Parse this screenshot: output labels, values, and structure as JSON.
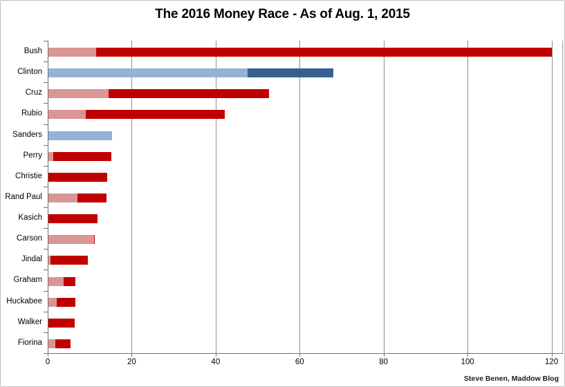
{
  "title": "The 2016 Money Race - As of Aug. 1, 2015",
  "credit": "Steve Benen, Maddow Blog",
  "colors": {
    "background": "#ffffff",
    "outer_border": "#bfbfbf",
    "gridline": "#8e8e8e",
    "axis": "#707070",
    "text": "#000000",
    "republican_light": "#D99694",
    "republican_dark": "#C00000",
    "democrat_light": "#95B3D7",
    "democrat_dark": "#376092"
  },
  "chart_data": {
    "type": "bar",
    "orientation": "horizontal",
    "stacked": true,
    "title": "The 2016 Money Race - As of Aug. 1, 2015",
    "xlabel": "",
    "ylabel": "",
    "xlim": [
      0,
      122.7
    ],
    "x_ticks": [
      0,
      20,
      40,
      60,
      80,
      100,
      120
    ],
    "grid": true,
    "legend": "none",
    "units": "millions of dollars",
    "categories": [
      "Bush",
      "Clinton",
      "Cruz",
      "Rubio",
      "Sanders",
      "Perry",
      "Christie",
      "Rand Paul",
      "Kasich",
      "Carson",
      "Jindal",
      "Graham",
      "Huckabee",
      "Walker",
      "Fiorina"
    ],
    "color_groups": [
      "rep",
      "dem",
      "rep",
      "rep",
      "dem",
      "rep",
      "rep",
      "rep",
      "rep",
      "rep",
      "rep",
      "rep",
      "rep",
      "rep",
      "rep"
    ],
    "palette": {
      "rep": {
        "light": "#D99694",
        "dark": "#C00000"
      },
      "dem": {
        "light": "#95B3D7",
        "dark": "#376092"
      }
    },
    "series": [
      {
        "name": "segment-light",
        "values": [
          11.4,
          47.5,
          14.3,
          8.9,
          15.2,
          1.2,
          0,
          6.9,
          0,
          10.8,
          0.5,
          3.7,
          2.0,
          0,
          1.6
        ]
      },
      {
        "name": "segment-dark",
        "values": [
          108.6,
          20.3,
          38.2,
          33.1,
          0,
          13.8,
          14.0,
          6.9,
          11.7,
          0.3,
          8.9,
          2.8,
          4.5,
          6.3,
          3.7
        ]
      }
    ],
    "totals": [
      120.0,
      67.8,
      52.5,
      42.0,
      15.2,
      15.0,
      14.0,
      13.8,
      11.7,
      11.1,
      9.4,
      6.5,
      6.5,
      6.3,
      5.3
    ]
  }
}
